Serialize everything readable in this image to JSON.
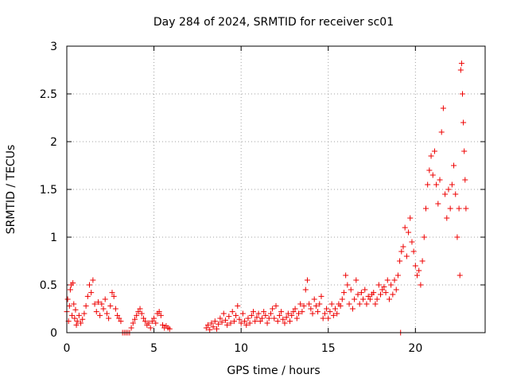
{
  "chart_data": {
    "type": "scatter",
    "title": "Day 284 of 2024, SRMTID for receiver sc01",
    "xlabel": "GPS time / hours",
    "ylabel": "SRMTID / TECUs",
    "xlim": [
      0,
      24
    ],
    "ylim": [
      0,
      3
    ],
    "xticks": [
      0,
      5,
      10,
      15,
      20
    ],
    "yticks": [
      0,
      0.5,
      1,
      1.5,
      2,
      2.5,
      3
    ],
    "xtick_labels": [
      "0",
      "5",
      "10",
      "15",
      "20"
    ],
    "ytick_labels": [
      "0",
      "0.5",
      "1",
      "1.5",
      "2",
      "2.5",
      "3"
    ],
    "grid": true,
    "marker": "+",
    "color": "#ee0000",
    "series": [
      {
        "name": "SRMTID",
        "points": [
          [
            0.0,
            0.22
          ],
          [
            0.05,
            0.35
          ],
          [
            0.1,
            0.12
          ],
          [
            0.15,
            0.28
          ],
          [
            0.2,
            0.45
          ],
          [
            0.25,
            0.5
          ],
          [
            0.3,
            0.18
          ],
          [
            0.35,
            0.52
          ],
          [
            0.4,
            0.3
          ],
          [
            0.45,
            0.15
          ],
          [
            0.5,
            0.24
          ],
          [
            0.55,
            0.08
          ],
          [
            0.6,
            0.12
          ],
          [
            0.7,
            0.18
          ],
          [
            0.8,
            0.1
          ],
          [
            0.9,
            0.14
          ],
          [
            1.0,
            0.2
          ],
          [
            1.1,
            0.28
          ],
          [
            1.2,
            0.38
          ],
          [
            1.3,
            0.5
          ],
          [
            1.4,
            0.42
          ],
          [
            1.5,
            0.55
          ],
          [
            1.6,
            0.3
          ],
          [
            1.7,
            0.22
          ],
          [
            1.8,
            0.32
          ],
          [
            1.9,
            0.18
          ],
          [
            2.0,
            0.3
          ],
          [
            2.1,
            0.25
          ],
          [
            2.2,
            0.35
          ],
          [
            2.3,
            0.2
          ],
          [
            2.4,
            0.15
          ],
          [
            2.5,
            0.28
          ],
          [
            2.6,
            0.42
          ],
          [
            2.7,
            0.38
          ],
          [
            2.8,
            0.25
          ],
          [
            2.9,
            0.18
          ],
          [
            3.0,
            0.15
          ],
          [
            3.1,
            0.12
          ],
          [
            3.2,
            0.0
          ],
          [
            3.3,
            0.0
          ],
          [
            3.4,
            0.0
          ],
          [
            3.5,
            0.0
          ],
          [
            3.6,
            0.0
          ],
          [
            3.7,
            0.05
          ],
          [
            3.8,
            0.1
          ],
          [
            3.9,
            0.14
          ],
          [
            4.0,
            0.18
          ],
          [
            4.1,
            0.22
          ],
          [
            4.2,
            0.25
          ],
          [
            4.3,
            0.2
          ],
          [
            4.4,
            0.15
          ],
          [
            4.5,
            0.12
          ],
          [
            4.6,
            0.08
          ],
          [
            4.7,
            0.1
          ],
          [
            4.8,
            0.05
          ],
          [
            4.9,
            0.12
          ],
          [
            5.0,
            0.15
          ],
          [
            5.1,
            0.1
          ],
          [
            5.2,
            0.2
          ],
          [
            5.3,
            0.22
          ],
          [
            5.4,
            0.18
          ],
          [
            5.5,
            0.08
          ],
          [
            5.6,
            0.05
          ],
          [
            5.7,
            0.07
          ],
          [
            5.8,
            0.05
          ],
          [
            5.9,
            0.04
          ],
          [
            8.0,
            0.05
          ],
          [
            8.1,
            0.08
          ],
          [
            8.2,
            0.03
          ],
          [
            8.3,
            0.1
          ],
          [
            8.4,
            0.06
          ],
          [
            8.5,
            0.12
          ],
          [
            8.6,
            0.04
          ],
          [
            8.7,
            0.09
          ],
          [
            8.8,
            0.15
          ],
          [
            8.9,
            0.11
          ],
          [
            9.0,
            0.2
          ],
          [
            9.1,
            0.13
          ],
          [
            9.2,
            0.08
          ],
          [
            9.3,
            0.17
          ],
          [
            9.4,
            0.1
          ],
          [
            9.5,
            0.22
          ],
          [
            9.6,
            0.12
          ],
          [
            9.7,
            0.18
          ],
          [
            9.8,
            0.28
          ],
          [
            9.9,
            0.14
          ],
          [
            10.0,
            0.1
          ],
          [
            10.1,
            0.2
          ],
          [
            10.2,
            0.12
          ],
          [
            10.3,
            0.08
          ],
          [
            10.4,
            0.15
          ],
          [
            10.5,
            0.1
          ],
          [
            10.6,
            0.18
          ],
          [
            10.7,
            0.22
          ],
          [
            10.8,
            0.12
          ],
          [
            10.9,
            0.16
          ],
          [
            11.0,
            0.2
          ],
          [
            11.1,
            0.12
          ],
          [
            11.2,
            0.15
          ],
          [
            11.3,
            0.22
          ],
          [
            11.4,
            0.18
          ],
          [
            11.5,
            0.1
          ],
          [
            11.6,
            0.15
          ],
          [
            11.7,
            0.2
          ],
          [
            11.8,
            0.25
          ],
          [
            11.9,
            0.15
          ],
          [
            12.0,
            0.28
          ],
          [
            12.1,
            0.12
          ],
          [
            12.2,
            0.18
          ],
          [
            12.3,
            0.22
          ],
          [
            12.4,
            0.14
          ],
          [
            12.5,
            0.1
          ],
          [
            12.6,
            0.16
          ],
          [
            12.7,
            0.2
          ],
          [
            12.8,
            0.12
          ],
          [
            12.9,
            0.18
          ],
          [
            13.0,
            0.22
          ],
          [
            13.1,
            0.25
          ],
          [
            13.2,
            0.15
          ],
          [
            13.3,
            0.2
          ],
          [
            13.4,
            0.3
          ],
          [
            13.5,
            0.22
          ],
          [
            13.6,
            0.28
          ],
          [
            13.7,
            0.45
          ],
          [
            13.8,
            0.55
          ],
          [
            13.9,
            0.3
          ],
          [
            14.0,
            0.25
          ],
          [
            14.1,
            0.2
          ],
          [
            14.2,
            0.35
          ],
          [
            14.3,
            0.28
          ],
          [
            14.4,
            0.22
          ],
          [
            14.5,
            0.3
          ],
          [
            14.6,
            0.38
          ],
          [
            14.7,
            0.15
          ],
          [
            14.8,
            0.2
          ],
          [
            14.9,
            0.25
          ],
          [
            15.0,
            0.15
          ],
          [
            15.1,
            0.22
          ],
          [
            15.2,
            0.3
          ],
          [
            15.3,
            0.18
          ],
          [
            15.4,
            0.25
          ],
          [
            15.5,
            0.2
          ],
          [
            15.6,
            0.3
          ],
          [
            15.7,
            0.28
          ],
          [
            15.8,
            0.35
          ],
          [
            15.9,
            0.42
          ],
          [
            16.0,
            0.6
          ],
          [
            16.1,
            0.5
          ],
          [
            16.2,
            0.3
          ],
          [
            16.3,
            0.45
          ],
          [
            16.4,
            0.25
          ],
          [
            16.5,
            0.35
          ],
          [
            16.6,
            0.55
          ],
          [
            16.7,
            0.4
          ],
          [
            16.8,
            0.3
          ],
          [
            16.9,
            0.42
          ],
          [
            17.0,
            0.35
          ],
          [
            17.1,
            0.45
          ],
          [
            17.2,
            0.3
          ],
          [
            17.3,
            0.38
          ],
          [
            17.4,
            0.35
          ],
          [
            17.5,
            0.4
          ],
          [
            17.6,
            0.42
          ],
          [
            17.7,
            0.3
          ],
          [
            17.8,
            0.35
          ],
          [
            17.9,
            0.5
          ],
          [
            18.0,
            0.4
          ],
          [
            18.1,
            0.45
          ],
          [
            18.2,
            0.48
          ],
          [
            18.3,
            0.42
          ],
          [
            18.4,
            0.55
          ],
          [
            18.5,
            0.35
          ],
          [
            18.6,
            0.5
          ],
          [
            18.7,
            0.4
          ],
          [
            18.8,
            0.55
          ],
          [
            18.9,
            0.45
          ],
          [
            19.0,
            0.6
          ],
          [
            19.1,
            0.75
          ],
          [
            19.15,
            0.0
          ],
          [
            19.2,
            0.85
          ],
          [
            19.3,
            0.9
          ],
          [
            19.4,
            1.1
          ],
          [
            19.5,
            0.8
          ],
          [
            19.6,
            1.05
          ],
          [
            19.7,
            1.2
          ],
          [
            19.8,
            0.95
          ],
          [
            19.9,
            0.85
          ],
          [
            20.0,
            0.7
          ],
          [
            20.1,
            0.6
          ],
          [
            20.2,
            0.65
          ],
          [
            20.3,
            0.5
          ],
          [
            20.4,
            0.75
          ],
          [
            20.5,
            1.0
          ],
          [
            20.6,
            1.3
          ],
          [
            20.7,
            1.55
          ],
          [
            20.8,
            1.7
          ],
          [
            20.9,
            1.85
          ],
          [
            21.0,
            1.65
          ],
          [
            21.1,
            1.9
          ],
          [
            21.2,
            1.55
          ],
          [
            21.3,
            1.35
          ],
          [
            21.4,
            1.6
          ],
          [
            21.5,
            2.1
          ],
          [
            21.6,
            2.35
          ],
          [
            21.7,
            1.45
          ],
          [
            21.8,
            1.2
          ],
          [
            21.9,
            1.5
          ],
          [
            22.0,
            1.3
          ],
          [
            22.1,
            1.55
          ],
          [
            22.2,
            1.75
          ],
          [
            22.3,
            1.45
          ],
          [
            22.4,
            1.0
          ],
          [
            22.5,
            1.3
          ],
          [
            22.55,
            0.6
          ],
          [
            22.6,
            2.75
          ],
          [
            22.65,
            2.82
          ],
          [
            22.7,
            2.5
          ],
          [
            22.75,
            2.2
          ],
          [
            22.8,
            1.9
          ],
          [
            22.85,
            1.6
          ],
          [
            22.9,
            1.3
          ]
        ]
      }
    ]
  }
}
